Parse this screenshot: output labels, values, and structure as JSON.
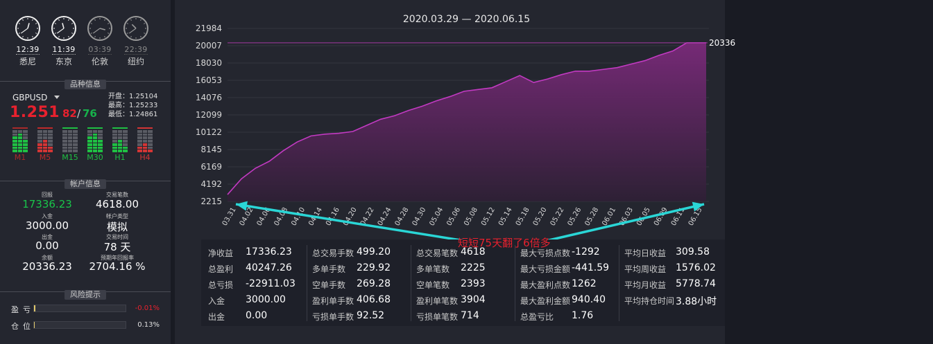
{
  "clocks": [
    {
      "time": "12:39",
      "city": "悉尼",
      "active": true,
      "hour_deg": 15,
      "min_deg": 234
    },
    {
      "time": "11:39",
      "city": "东京",
      "active": true,
      "hour_deg": 345,
      "min_deg": 234
    },
    {
      "time": "03:39",
      "city": "伦敦",
      "active": false,
      "hour_deg": 105,
      "min_deg": 234
    },
    {
      "time": "22:39",
      "city": "纽约",
      "active": false,
      "hour_deg": 315,
      "min_deg": 234
    }
  ],
  "sections": {
    "instrument": "品种信息",
    "account": "帐户信息",
    "risk": "风险提示"
  },
  "instrument": {
    "symbol": "GBPUSD",
    "price_main": "1.251",
    "price_bid_tail": "82",
    "slash": "/",
    "price_ask_tail": "76",
    "open": "开盘：1.25104",
    "high": "最高：1.25233",
    "low": "最低：1.24861",
    "timeframes": [
      {
        "label": "M1",
        "color": "#a92a2a",
        "bars": [
          [
            0,
            0,
            1,
            1,
            1,
            1,
            1
          ],
          [
            0,
            1,
            1,
            1,
            1,
            1,
            1
          ],
          [
            0,
            0,
            0,
            1,
            1,
            1,
            1
          ]
        ],
        "accent": "#1fc043"
      },
      {
        "label": "M5",
        "color": "#c02a2a",
        "bars": [
          [
            0,
            0,
            0,
            0,
            1,
            1,
            1
          ],
          [
            0,
            0,
            0,
            1,
            1,
            1,
            1
          ],
          [
            0,
            0,
            0,
            0,
            0,
            1,
            1
          ]
        ],
        "accent": "#d43535"
      },
      {
        "label": "M15",
        "color": "#1fc043",
        "bars": [
          [
            0,
            0,
            0,
            0,
            0,
            0,
            0
          ],
          [
            0,
            0,
            0,
            0,
            0,
            0,
            0
          ],
          [
            0,
            0,
            0,
            0,
            0,
            0,
            0
          ]
        ],
        "accent": "#1fc043"
      },
      {
        "label": "M30",
        "color": "#1fc043",
        "bars": [
          [
            0,
            0,
            1,
            1,
            1,
            1,
            1
          ],
          [
            0,
            1,
            1,
            1,
            1,
            1,
            1
          ],
          [
            0,
            0,
            0,
            1,
            1,
            1,
            1
          ]
        ],
        "accent": "#1fc043"
      },
      {
        "label": "H1",
        "color": "#1fc043",
        "bars": [
          [
            0,
            0,
            0,
            0,
            1,
            1,
            1
          ],
          [
            0,
            0,
            0,
            1,
            1,
            1,
            1
          ],
          [
            0,
            0,
            0,
            0,
            0,
            1,
            1
          ]
        ],
        "accent": "#1fc043"
      },
      {
        "label": "H4",
        "color": "#d43535",
        "bars": [
          [
            0,
            0,
            0,
            0,
            0,
            1,
            1
          ],
          [
            0,
            0,
            0,
            0,
            1,
            1,
            1
          ],
          [
            0,
            0,
            0,
            0,
            0,
            0,
            1
          ]
        ],
        "accent": "#d43535"
      }
    ]
  },
  "account": {
    "return_label": "回报",
    "return_value": "17336.23",
    "trades_label": "交易笔数",
    "trades_value": "4618.00",
    "deposit_label": "入金",
    "deposit_value": "3000.00",
    "acct_type_label": "帐户类型",
    "acct_type_value": "模拟",
    "withdraw_label": "出金",
    "withdraw_value": "0.00",
    "time_label": "交易时间",
    "time_value": "78 天",
    "balance_label": "余额",
    "balance_value": "20336.23",
    "annual_label": "预期年回报率",
    "annual_value": "2704.16 %"
  },
  "risk": {
    "pnl_label": "盈亏",
    "pnl_value": "-0.01%",
    "pnl_fraction": 0.0001,
    "pos_label": "仓位",
    "pos_value": "0.13%",
    "pos_fraction": 0.0013
  },
  "annotation": "短短75天翻了6倍多",
  "chart_data": {
    "type": "area",
    "title": "2020.03.29 — 2020.06.15",
    "ylim": [
      2215,
      21984
    ],
    "yticks": [
      "21984",
      "20007",
      "18030",
      "16053",
      "14076",
      "12099",
      "10122",
      "8145",
      "6169",
      "4192",
      "2215"
    ],
    "ytick_values": [
      21984,
      20007,
      18030,
      16053,
      14076,
      12099,
      10122,
      8145,
      6169,
      4192,
      2215
    ],
    "reference_line": 20336,
    "reference_label": "20336",
    "xticks": [
      "03.31",
      "04.02",
      "04.06",
      "04.08",
      "04.10",
      "04.14",
      "04.16",
      "04.20",
      "04.22",
      "04.24",
      "04.28",
      "04.30",
      "05.04",
      "05.06",
      "05.08",
      "05.12",
      "05.14",
      "05.18",
      "05.20",
      "05.22",
      "05.26",
      "05.28",
      "06.01",
      "06.03",
      "06.05",
      "06.09",
      "06.11",
      "06.15"
    ],
    "values": [
      3000,
      4800,
      6000,
      6800,
      8000,
      9000,
      9700,
      9900,
      10000,
      10200,
      10900,
      11600,
      12000,
      12600,
      13100,
      13700,
      14200,
      14800,
      15000,
      15200,
      15900,
      16600,
      15800,
      16200,
      16700,
      17100,
      17100,
      17300,
      17500,
      17900,
      18300,
      18900,
      19400,
      20336,
      20336
    ]
  },
  "stats": [
    [
      {
        "label": "净收益",
        "value": "17336.23"
      },
      {
        "label": "总盈利",
        "value": "40247.26"
      },
      {
        "label": "总亏损",
        "value": "-22911.03"
      },
      {
        "label": "入金",
        "value": "3000.00"
      },
      {
        "label": "出金",
        "value": "0.00"
      }
    ],
    [
      {
        "label": "总交易手数",
        "value": "499.20"
      },
      {
        "label": "多单手数",
        "value": "229.92"
      },
      {
        "label": "空单手数",
        "value": "269.28"
      },
      {
        "label": "盈利单手数",
        "value": "406.68"
      },
      {
        "label": "亏损单手数",
        "value": "92.52"
      }
    ],
    [
      {
        "label": "总交易笔数",
        "value": "4618"
      },
      {
        "label": "多单笔数",
        "value": "2225"
      },
      {
        "label": "空单笔数",
        "value": "2393"
      },
      {
        "label": "盈利单笔数",
        "value": "3904"
      },
      {
        "label": "亏损单笔数",
        "value": "714"
      }
    ],
    [
      {
        "label": "最大亏损点数",
        "value": "-1292"
      },
      {
        "label": "最大亏损金额",
        "value": "-441.59"
      },
      {
        "label": "最大盈利点数",
        "value": "1262"
      },
      {
        "label": "最大盈利金额",
        "value": "940.40"
      },
      {
        "label": "总盈亏比",
        "value": "1.76"
      }
    ],
    [
      {
        "label": "平均日收益",
        "value": "309.58"
      },
      {
        "label": "平均周收益",
        "value": "1576.02"
      },
      {
        "label": "平均月收益",
        "value": "5778.74"
      },
      {
        "label": "平均持仓时间",
        "value": "3.88小时"
      },
      {
        "label": "",
        "value": ""
      }
    ]
  ]
}
